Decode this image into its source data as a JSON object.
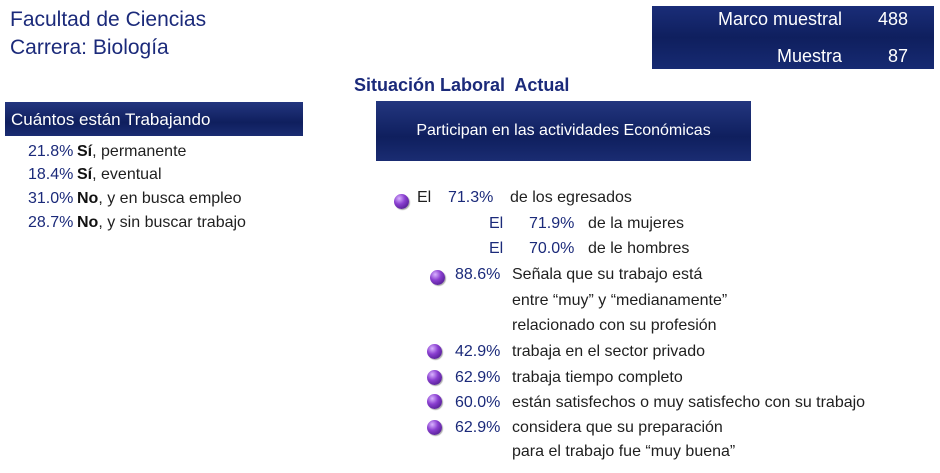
{
  "header": {
    "facultad": "Facultad de Ciencias",
    "carrera": "Carrera: Biología"
  },
  "marco": {
    "marco_label": "Marco muestral",
    "marco_value": "488",
    "muestra_label": "Muestra",
    "muestra_value": "87"
  },
  "situacion_title": "Situación Laboral  Actual",
  "trabajando": {
    "heading": "Cuántos están Trabajando",
    "items": [
      {
        "pct": "21.8%",
        "bold": "Sí",
        "rest": ", permanente"
      },
      {
        "pct": "18.4%",
        "bold": "Sí",
        "rest": ", eventual"
      },
      {
        "pct": "31.0%",
        "bold": "No",
        "rest": ", y en busca empleo"
      },
      {
        "pct": "28.7%",
        "bold": "No",
        "rest": ", y sin buscar trabajo"
      }
    ]
  },
  "participan": {
    "heading": "Participan en las actividades Económicas",
    "el_label": "El",
    "egresados_pct": "71.3%",
    "egresados_text": "de los egresados",
    "mujeres_el": "El",
    "mujeres_pct": "71.9%",
    "mujeres_text": "de la mujeres",
    "hombres_el": "El",
    "hombres_pct": "70.0%",
    "hombres_text": "de le hombres",
    "senala_pct": "88.6%",
    "senala_line1": "Señala que su trabajo está",
    "senala_line2": "entre “muy” y “medianamente”",
    "senala_line3": "relacionado con su profesión",
    "privado_pct": "42.9%",
    "privado_text": "trabaja en el sector privado",
    "completo_pct": "62.9%",
    "completo_text": "trabaja tiempo completo",
    "satisf_pct": "60.0%",
    "satisf_text": "están satisfechos o muy satisfecho con su trabajo",
    "prep_pct": "62.9%",
    "prep_line1": "considera que su preparación",
    "prep_line2": "para el trabajo fue “muy buena”"
  }
}
